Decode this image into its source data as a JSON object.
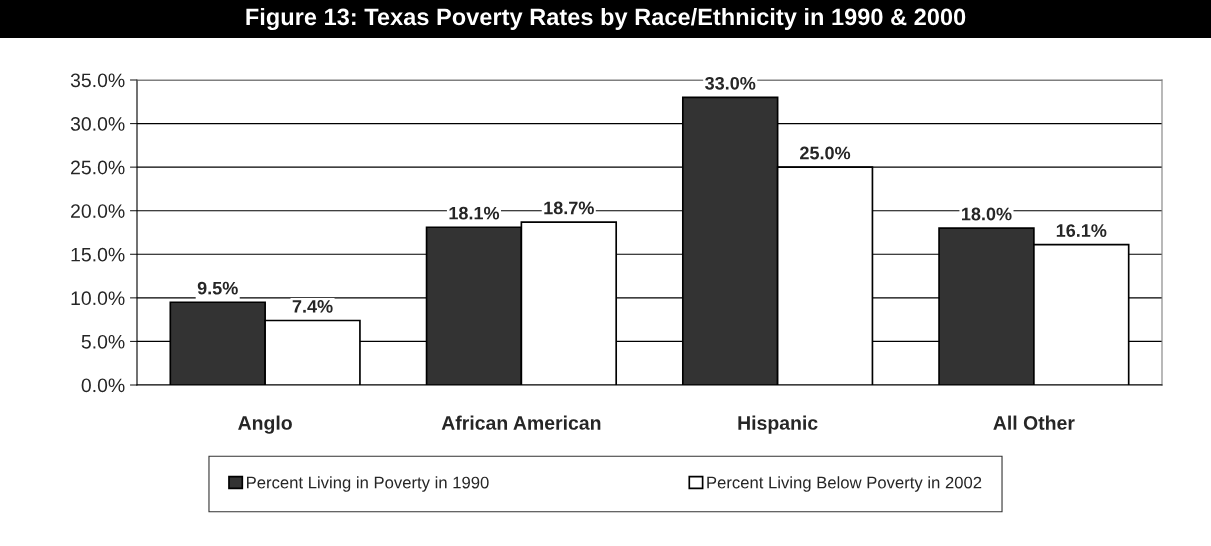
{
  "chart_data": {
    "type": "bar",
    "title": "Figure 13: Texas Poverty Rates by Race/Ethnicity in 1990 & 2000",
    "categories": [
      "Anglo",
      "African American",
      "Hispanic",
      "All Other"
    ],
    "series": [
      {
        "name": "Percent Living in Poverty in 1990",
        "color": "#333333",
        "values": [
          9.5,
          18.1,
          33.0,
          18.0
        ],
        "value_labels": [
          "9.5%",
          "18.1%",
          "33.0%",
          "18.0%"
        ]
      },
      {
        "name": "Percent Living Below Poverty in 2002",
        "color": "#ffffff",
        "values": [
          7.4,
          18.7,
          25.0,
          16.1
        ],
        "value_labels": [
          "7.4%",
          "18.7%",
          "25.0%",
          "16.1%"
        ]
      }
    ],
    "ylim": [
      0,
      35
    ],
    "yticks": [
      {
        "value": 0,
        "label": "0.0%"
      },
      {
        "value": 5,
        "label": "5.0%"
      },
      {
        "value": 10,
        "label": "10.0%"
      },
      {
        "value": 15,
        "label": "15.0%"
      },
      {
        "value": 20,
        "label": "20.0%"
      },
      {
        "value": 25,
        "label": "25.0%"
      },
      {
        "value": 30,
        "label": "30.0%"
      },
      {
        "value": 35,
        "label": "35.0%"
      }
    ],
    "grid": "y",
    "legend": "bottom"
  }
}
